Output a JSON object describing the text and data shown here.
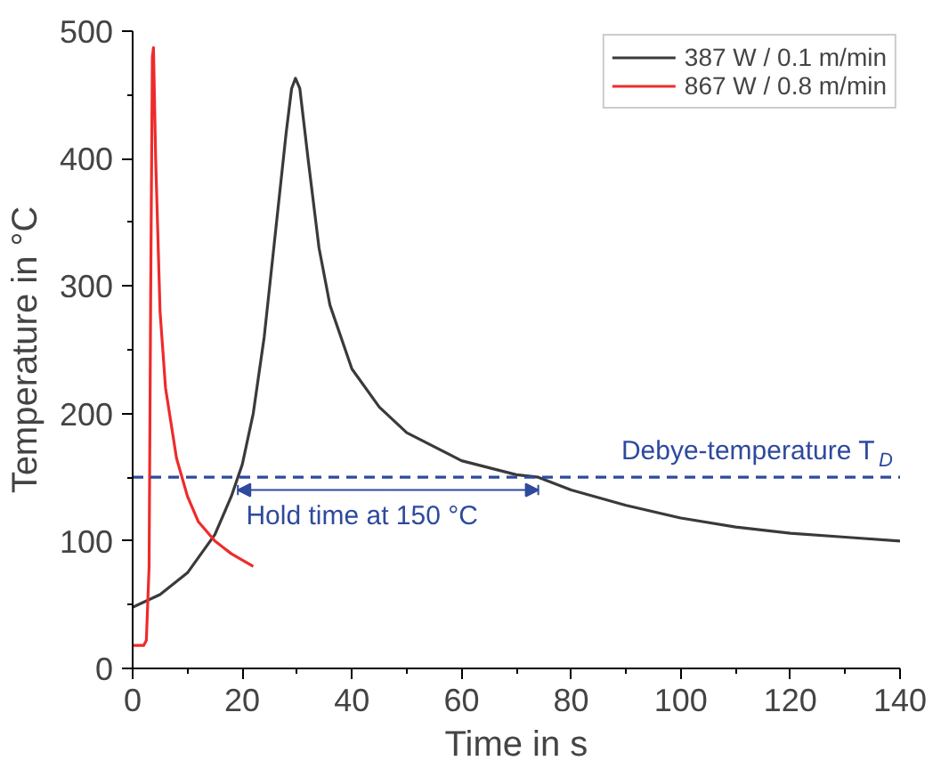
{
  "chart_data": {
    "type": "line",
    "xlabel": "Time in s",
    "ylabel": "Temperature in °C",
    "xlim": [
      0,
      140
    ],
    "ylim": [
      0,
      500
    ],
    "xticks": [
      0,
      20,
      40,
      60,
      80,
      100,
      120,
      140
    ],
    "yticks": [
      0,
      100,
      200,
      300,
      400,
      500
    ],
    "grid": false,
    "legend": "top right",
    "line_style": "solid",
    "marker": "none",
    "series": [
      {
        "name": "387 W / 0.1 m/min",
        "color": "#3a3a3a",
        "x": [
          0,
          5,
          10,
          15,
          18,
          20,
          22,
          24,
          26,
          28,
          29,
          29.7,
          30.5,
          32,
          34,
          36,
          40,
          45,
          50,
          60,
          70,
          74,
          80,
          90,
          100,
          110,
          120,
          130,
          140
        ],
        "values": [
          48,
          58,
          75,
          105,
          135,
          160,
          200,
          260,
          340,
          420,
          455,
          463,
          455,
          400,
          330,
          285,
          235,
          205,
          185,
          163,
          152,
          150,
          140,
          128,
          118,
          111,
          106,
          103,
          100
        ]
      },
      {
        "name": "867 W / 0.8 m/min",
        "color": "#ee2b2b",
        "x": [
          0,
          2,
          2.5,
          3,
          3.3,
          3.6,
          3.8,
          4.2,
          5,
          6,
          8,
          10,
          12,
          15,
          18,
          22
        ],
        "values": [
          18,
          18,
          22,
          80,
          300,
          480,
          487,
          400,
          280,
          220,
          165,
          135,
          115,
          100,
          90,
          80
        ]
      }
    ],
    "ref_lines": [
      {
        "axis": "y",
        "value": 150,
        "label": "Debye-temperature T$_{D}$",
        "color": "#2e4a9e",
        "line_style": "dashed"
      }
    ],
    "annotations": [
      "Hold time at 150 °C"
    ]
  }
}
